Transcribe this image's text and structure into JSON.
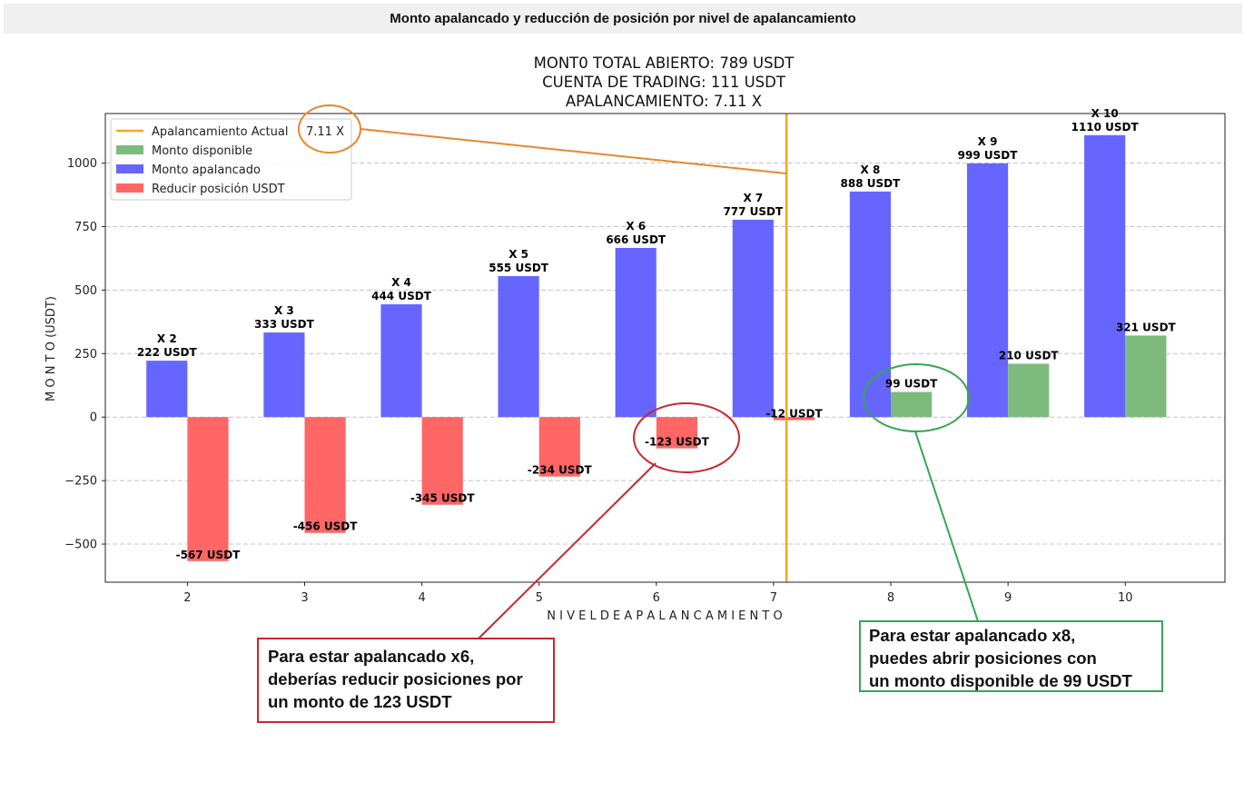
{
  "window": {
    "title": "Monto apalancado y reducción de posición por nivel de apalancamiento"
  },
  "chart_data": {
    "type": "bar",
    "title_lines": [
      "MONT0 TOTAL ABIERTO: 789 USDT",
      "CUENTA DE TRADING: 111 USDT",
      "APALANCAMIENTO: 7.11  X"
    ],
    "xlabel": "N I V E L   D E   A P A L A N C A M I E N T O",
    "ylabel": "M O N T O   (USDT)",
    "x": [
      2,
      3,
      4,
      5,
      6,
      7,
      8,
      9,
      10
    ],
    "ylim": [
      -650,
      1195
    ],
    "yticks": [
      -500,
      -250,
      0,
      250,
      500,
      750,
      1000
    ],
    "ytick_labels": [
      "−500",
      "−250",
      "0",
      "250",
      "500",
      "750",
      "1000"
    ],
    "grid": "y-dashed",
    "current_leverage": 7.11,
    "current_leverage_label": "7.11 X",
    "series": [
      {
        "name": "Monto apalancado",
        "color": "#6666ff",
        "values": [
          222,
          333,
          444,
          555,
          666,
          777,
          888,
          999,
          1110
        ],
        "labels_top": [
          "X 2",
          "X 3",
          "X 4",
          "X 5",
          "X 6",
          "X 7",
          "X 8",
          "X 9",
          "X 10"
        ],
        "labels_bottom": [
          "222 USDT",
          "333 USDT",
          "444 USDT",
          "555 USDT",
          "666 USDT",
          "777 USDT",
          "888 USDT",
          "999 USDT",
          "1110 USDT"
        ]
      },
      {
        "name": "Reducir posición USDT",
        "color": "#ff6666",
        "values": [
          -567,
          -456,
          -345,
          -234,
          -123,
          -12,
          null,
          null,
          null
        ],
        "labels": [
          "-567 USDT",
          "-456 USDT",
          "-345 USDT",
          "-234 USDT",
          "-123 USDT",
          "-12 USDT",
          "",
          "",
          ""
        ]
      },
      {
        "name": "Monto disponible",
        "color": "#7dbb7d",
        "values": [
          null,
          null,
          null,
          null,
          null,
          null,
          99,
          210,
          321
        ],
        "labels": [
          "",
          "",
          "",
          "",
          "",
          "",
          "99 USDT",
          "210 USDT",
          "321 USDT"
        ]
      }
    ],
    "legend": {
      "placement": "top-left",
      "entries": [
        {
          "label": "Apalancamiento Actual",
          "kind": "line",
          "color": "#f5a623"
        },
        {
          "label": "Monto disponible",
          "kind": "patch",
          "color": "#7dbb7d"
        },
        {
          "label": "Monto apalancado",
          "kind": "patch",
          "color": "#6666ff"
        },
        {
          "label": "Reducir posición USDT",
          "kind": "patch",
          "color": "#ff6666"
        }
      ]
    },
    "annotation_colors": {
      "legend_callout": "#e8862e",
      "red_callout": "#c8282e",
      "green_callout": "#33a852"
    }
  },
  "notes": {
    "red": [
      "Para estar apalancado x6,",
      "deberías reducir posiciones por",
      "un monto de 123 USDT"
    ],
    "green": [
      "Para estar apalancado x8,",
      "puedes abrir posiciones con",
      "un monto disponible de 99 USDT"
    ]
  }
}
